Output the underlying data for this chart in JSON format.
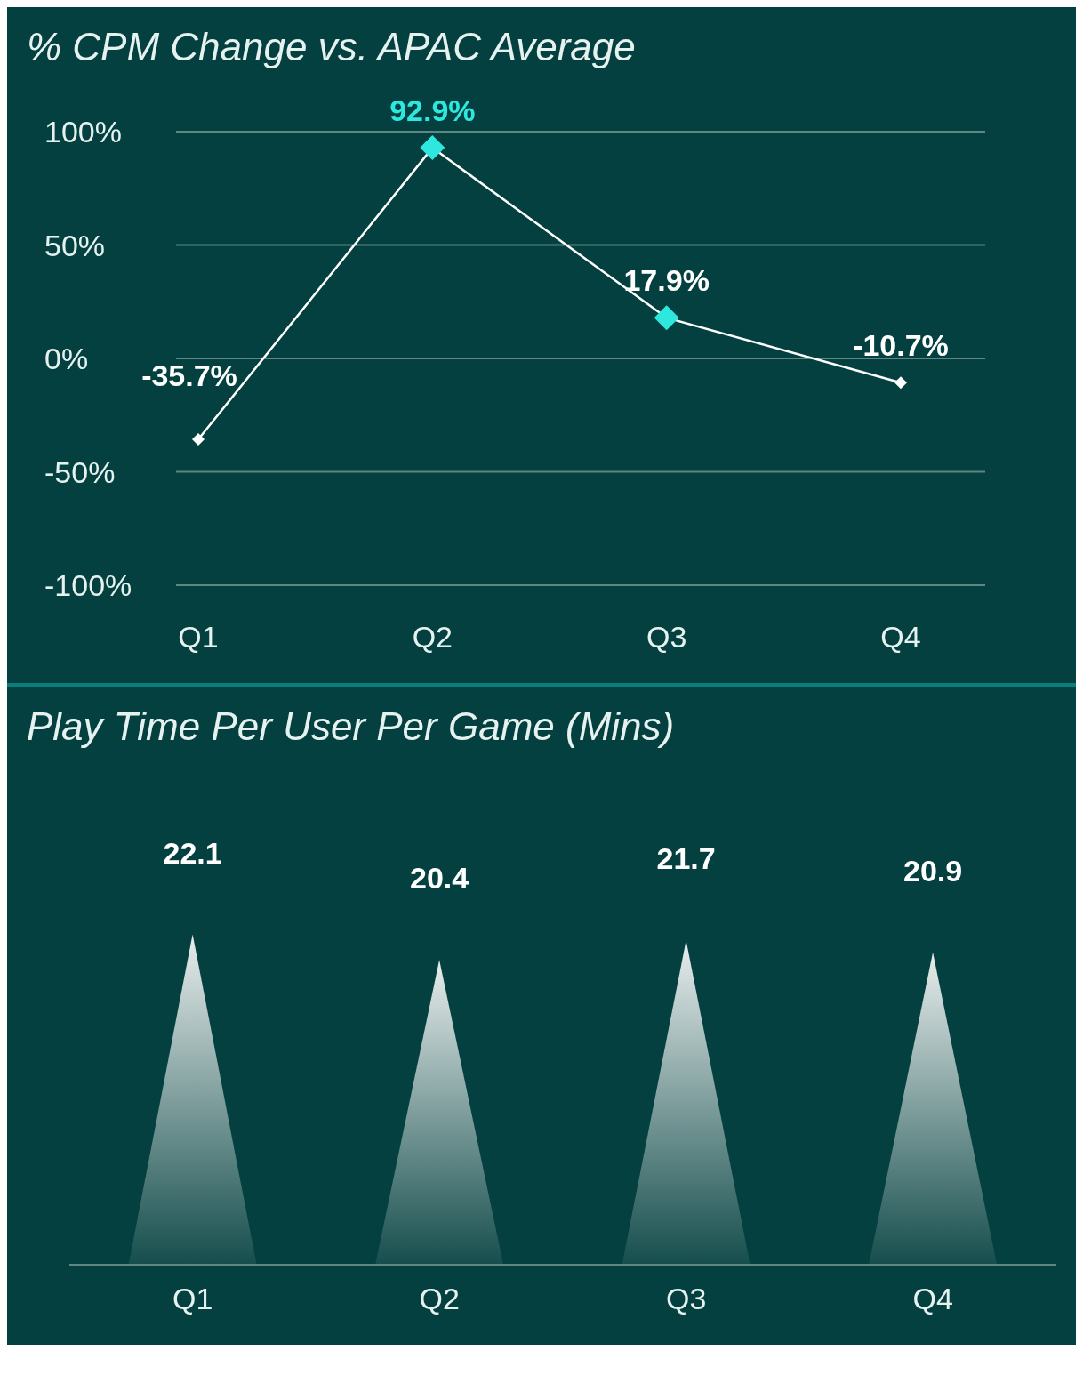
{
  "chart_data": [
    {
      "type": "line",
      "title": "% CPM Change vs. APAC Average",
      "categories": [
        "Q1",
        "Q2",
        "Q3",
        "Q4"
      ],
      "values": [
        -35.7,
        92.9,
        17.9,
        -10.7
      ],
      "color": "#ffffff",
      "colors": [
        "#ffffff",
        "#2ee8df",
        "#2ee8df",
        "#ffffff"
      ],
      "value_labels": [
        "-35.7%",
        "92.9%",
        "17.9%",
        "-10.7%"
      ],
      "ylim": [
        -100,
        100
      ],
      "yticks": [
        {
          "value": -100,
          "label": "-100%"
        },
        {
          "value": -50,
          "label": "-50%"
        },
        {
          "value": 0,
          "label": "0%"
        },
        {
          "value": 50,
          "label": "50%"
        },
        {
          "value": 100,
          "label": "100%"
        }
      ],
      "grid": "y",
      "marker": "diamond",
      "line_style": "solid"
    },
    {
      "type": "bar",
      "title": "Play Time Per User Per Game (Mins)",
      "categories": [
        "Q1",
        "Q2",
        "Q3",
        "Q4"
      ],
      "values": [
        22.1,
        20.4,
        21.7,
        20.9
      ],
      "color": "#e8eeed",
      "data_labels": true
    }
  ]
}
